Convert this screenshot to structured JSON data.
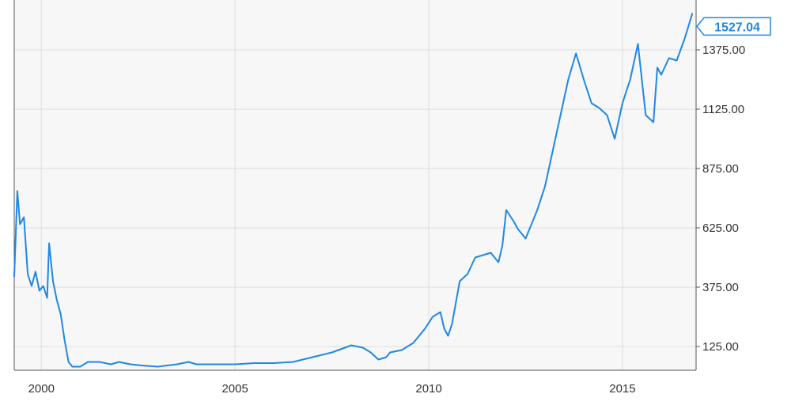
{
  "chart_data": {
    "type": "line",
    "title": "",
    "xlabel": "",
    "ylabel": "",
    "xlim": [
      1999.3,
      2016.9
    ],
    "ylim": [
      25,
      1585
    ],
    "grid": true,
    "legend": "none",
    "x_ticks": [
      {
        "value": 2000,
        "label": "2000"
      },
      {
        "value": 2005,
        "label": "2005"
      },
      {
        "value": 2010,
        "label": "2010"
      },
      {
        "value": 2015,
        "label": "2015"
      }
    ],
    "y_ticks": [
      {
        "value": 125,
        "label": "125.00"
      },
      {
        "value": 375,
        "label": "375.00"
      },
      {
        "value": 625,
        "label": "625.00"
      },
      {
        "value": 875,
        "label": "875.00"
      },
      {
        "value": 1125,
        "label": "1125.00"
      },
      {
        "value": 1375,
        "label": "1375.00"
      }
    ],
    "last_value_label": "1527.04",
    "colors": {
      "line": "#1e88e5",
      "plot_background": "#f7f7f7",
      "grid": "#dddddd",
      "axis": "#555555",
      "tick_text": "#333333",
      "label_text": "#1e88e5"
    },
    "series": [
      {
        "x": [
          1999.3,
          1999.38,
          1999.45,
          1999.55,
          1999.65,
          1999.75,
          1999.85,
          1999.95,
          2000.05,
          2000.15,
          2000.2,
          2000.3,
          2000.4,
          2000.5,
          2000.6,
          2000.7,
          2000.8,
          2000.9,
          2001.0,
          2001.2,
          2001.5,
          2001.8,
          2002.0,
          2002.3,
          2002.6,
          2003.0,
          2003.5,
          2003.8,
          2004.0,
          2004.5,
          2005.0,
          2005.5,
          2006.0,
          2006.5,
          2007.0,
          2007.5,
          2008.0,
          2008.3,
          2008.5,
          2008.7,
          2008.9,
          2009.0,
          2009.3,
          2009.6,
          2009.9,
          2010.1,
          2010.3,
          2010.4,
          2010.5,
          2010.6,
          2010.8,
          2011.0,
          2011.2,
          2011.4,
          2011.6,
          2011.8,
          2011.9,
          2012.0,
          2012.2,
          2012.3,
          2012.5,
          2012.6,
          2012.8,
          2013.0,
          2013.2,
          2013.4,
          2013.6,
          2013.8,
          2014.0,
          2014.1,
          2014.2,
          2014.4,
          2014.6,
          2014.8,
          2015.0,
          2015.2,
          2015.4,
          2015.6,
          2015.8,
          2015.9,
          2016.0,
          2016.2,
          2016.4,
          2016.6,
          2016.8
        ],
        "y": [
          420,
          780,
          640,
          670,
          430,
          380,
          440,
          360,
          380,
          330,
          560,
          400,
          320,
          260,
          150,
          60,
          40,
          40,
          40,
          60,
          60,
          50,
          60,
          50,
          45,
          40,
          50,
          60,
          50,
          50,
          50,
          55,
          55,
          60,
          80,
          100,
          130,
          120,
          100,
          70,
          80,
          100,
          110,
          140,
          200,
          250,
          270,
          200,
          170,
          220,
          400,
          430,
          500,
          510,
          520,
          480,
          550,
          700,
          650,
          620,
          580,
          620,
          700,
          800,
          950,
          1100,
          1250,
          1360,
          1250,
          1200,
          1150,
          1130,
          1100,
          1000,
          1150,
          1250,
          1400,
          1100,
          1070,
          1300,
          1270,
          1340,
          1330,
          1420,
          1527.04
        ]
      }
    ]
  }
}
